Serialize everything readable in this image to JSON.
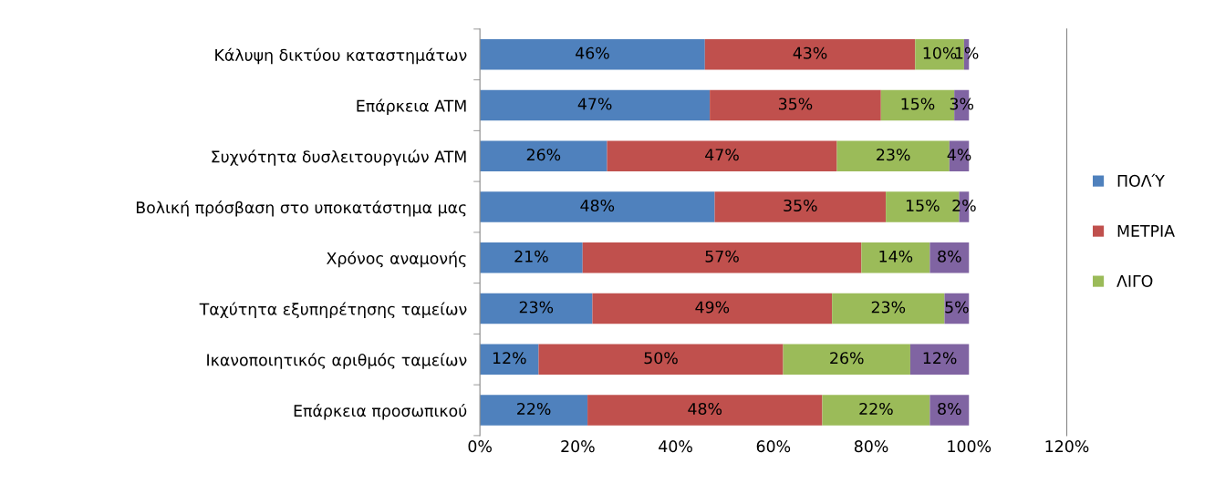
{
  "chart_data": {
    "type": "bar",
    "orientation": "horizontal",
    "stacked": true,
    "categories": [
      "Κάλυψη δικτύου καταστημάτων",
      "Επάρκεια ATM",
      "Συχνότητα δυσλειτουργιών ATM",
      "Βολική πρόσβαση στο υποκατάστημα μας",
      "Χρόνος αναμονής",
      "Ταχύτητα εξυπηρέτησης ταμείων",
      "Ικανοποιητικός αριθμός ταμείων",
      "Επάρκεια προσωπικού"
    ],
    "series": [
      {
        "name": "ΠΟΛΎ",
        "color": "#4f81bd",
        "values": [
          46,
          47,
          26,
          48,
          21,
          23,
          12,
          22
        ],
        "value_labels": [
          "46%",
          "47%",
          "26%",
          "48%",
          "21%",
          "23%",
          "12%",
          "22%"
        ]
      },
      {
        "name": "ΜΕΤΡΙΑ",
        "color": "#c0504d",
        "values": [
          43,
          35,
          47,
          35,
          57,
          49,
          50,
          48
        ],
        "value_labels": [
          "43%",
          "35%",
          "47%",
          "35%",
          "57%",
          "49%",
          "50%",
          "48%"
        ]
      },
      {
        "name": "ΛΙΓΟ",
        "color": "#9bbb59",
        "values": [
          10,
          15,
          23,
          15,
          14,
          23,
          26,
          22
        ],
        "value_labels": [
          "10%",
          "15%",
          "23%",
          "15%",
          "14%",
          "23%",
          "26%",
          "22%"
        ]
      },
      {
        "color": "#8064a2",
        "values": [
          1,
          3,
          4,
          2,
          8,
          5,
          12,
          8
        ],
        "value_labels": [
          "1%",
          "3%",
          "4%",
          "2%",
          "8%",
          "5%",
          "12%",
          "8%"
        ]
      }
    ],
    "xlim": [
      0,
      120
    ],
    "xticks": [
      {
        "value": 0,
        "label": "0%"
      },
      {
        "value": 20,
        "label": "20%"
      },
      {
        "value": 40,
        "label": "40%"
      },
      {
        "value": 60,
        "label": "60%"
      },
      {
        "value": 80,
        "label": "80%"
      },
      {
        "value": 100,
        "label": "100%"
      },
      {
        "value": 120,
        "label": "120%"
      }
    ],
    "grid": false,
    "legend": "right"
  }
}
